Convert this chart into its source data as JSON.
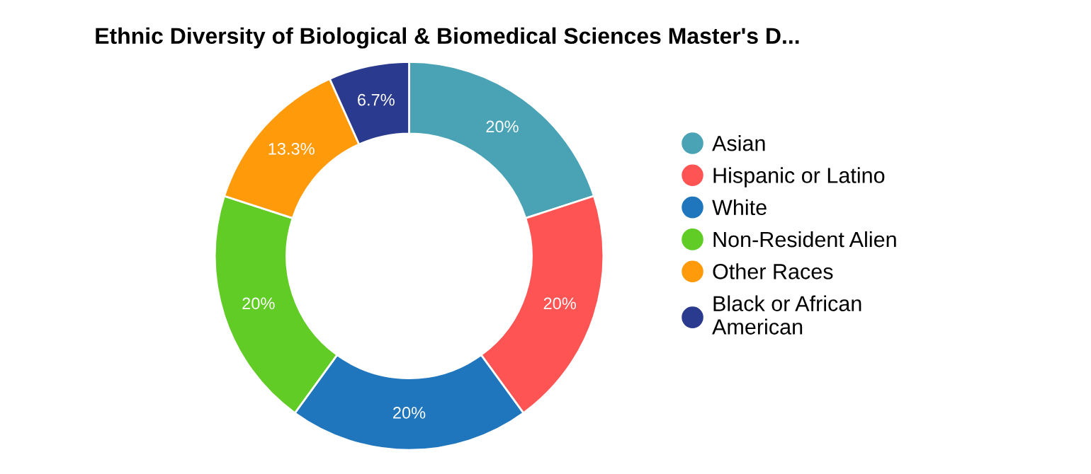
{
  "chart_data": {
    "type": "donut",
    "title": "Ethnic Diversity of Biological & Biomedical Sciences Master's D...",
    "categories": [
      "Asian",
      "Hispanic or Latino",
      "White",
      "Non-Resident Alien",
      "Other Races",
      "Black or African American"
    ],
    "values": [
      20,
      20,
      20,
      20,
      13.3,
      6.7
    ],
    "colors": [
      "#4aa3b5",
      "#ff5454",
      "#1f76bd",
      "#60cc25",
      "#ff9a0a",
      "#2a3a8e"
    ],
    "value_labels": [
      "20%",
      "20%",
      "20%",
      "20%",
      "13.3%",
      "6.7%"
    ],
    "legend": "right"
  }
}
